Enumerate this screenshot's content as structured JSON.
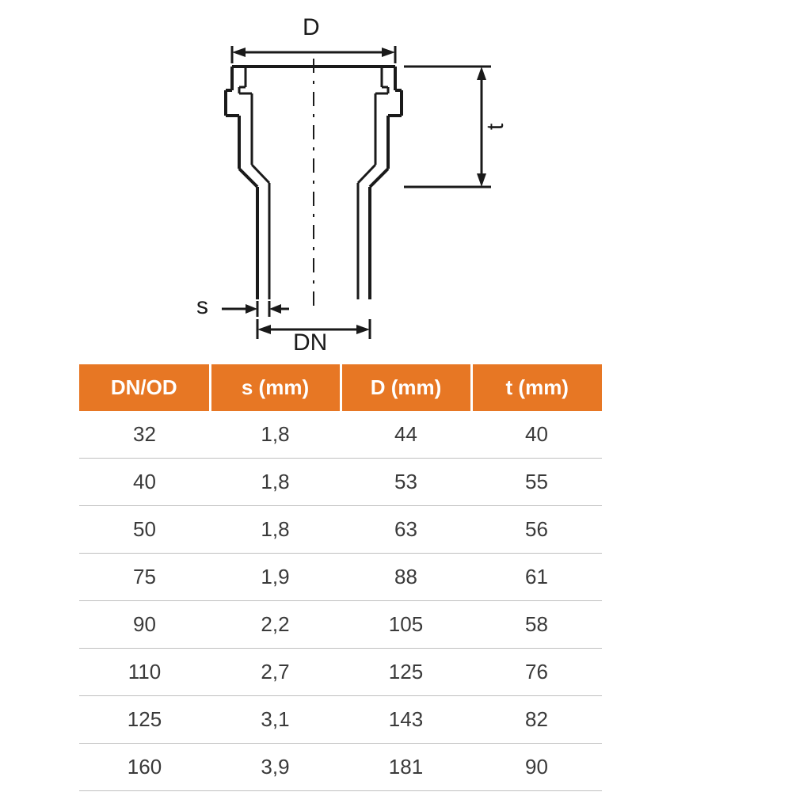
{
  "diagram": {
    "labels": {
      "D": "D",
      "t": "t",
      "s": "s",
      "DN": "DN"
    },
    "stroke": "#1a1a1a",
    "stroke_width": 4,
    "centerline_dash": "18 10 4 10",
    "background": "#ffffff"
  },
  "table": {
    "header_bg": "#e77724",
    "header_fg": "#ffffff",
    "header_fontsize": 26,
    "cell_fg": "#3a3a3a",
    "cell_fontsize": 26,
    "row_border": "#bfbfbf",
    "columns": [
      "DN/OD",
      "s (mm)",
      "D (mm)",
      "t (mm)"
    ],
    "rows": [
      [
        "32",
        "1,8",
        "44",
        "40"
      ],
      [
        "40",
        "1,8",
        "53",
        "55"
      ],
      [
        "50",
        "1,8",
        "63",
        "56"
      ],
      [
        "75",
        "1,9",
        "88",
        "61"
      ],
      [
        "90",
        "2,2",
        "105",
        "58"
      ],
      [
        "110",
        "2,7",
        "125",
        "76"
      ],
      [
        "125",
        "3,1",
        "143",
        "82"
      ],
      [
        "160",
        "3,9",
        "181",
        "90"
      ]
    ]
  }
}
